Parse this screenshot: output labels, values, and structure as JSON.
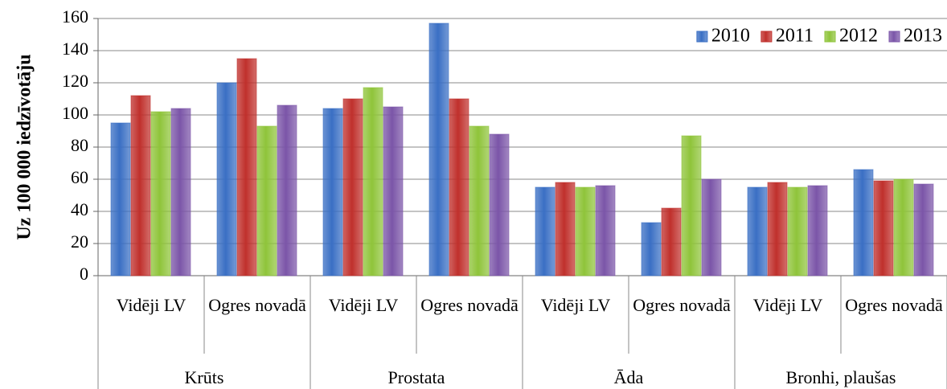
{
  "chart_data": {
    "type": "bar",
    "ylabel": "Uz 100 000 iedzīvotāju",
    "groups": [
      "Krūts",
      "Prostata",
      "Āda",
      "Bronhi, plaušas"
    ],
    "categories": [
      "Vidēji LV",
      "Ogres novadā",
      "Vidēji LV",
      "Ogres novadā",
      "Vidēji LV",
      "Ogres novadā",
      "Vidēji LV",
      "Ogres novadā"
    ],
    "series": [
      {
        "name": "2010",
        "color": "#3a6fc4",
        "values": [
          95,
          120,
          104,
          157,
          55,
          33,
          55,
          66
        ]
      },
      {
        "name": "2011",
        "color": "#c0302c",
        "values": [
          112,
          135,
          110,
          110,
          58,
          42,
          58,
          59
        ]
      },
      {
        "name": "2012",
        "color": "#8fc43a",
        "values": [
          102,
          93,
          117,
          93,
          55,
          87,
          55,
          60
        ]
      },
      {
        "name": "2013",
        "color": "#7b55a8",
        "values": [
          104,
          106,
          105,
          88,
          56,
          60,
          56,
          57
        ]
      }
    ],
    "ylim": [
      0,
      160
    ],
    "yticks": [
      0,
      20,
      40,
      60,
      80,
      100,
      120,
      140,
      160
    ],
    "grid": true,
    "legend": "top-right"
  }
}
